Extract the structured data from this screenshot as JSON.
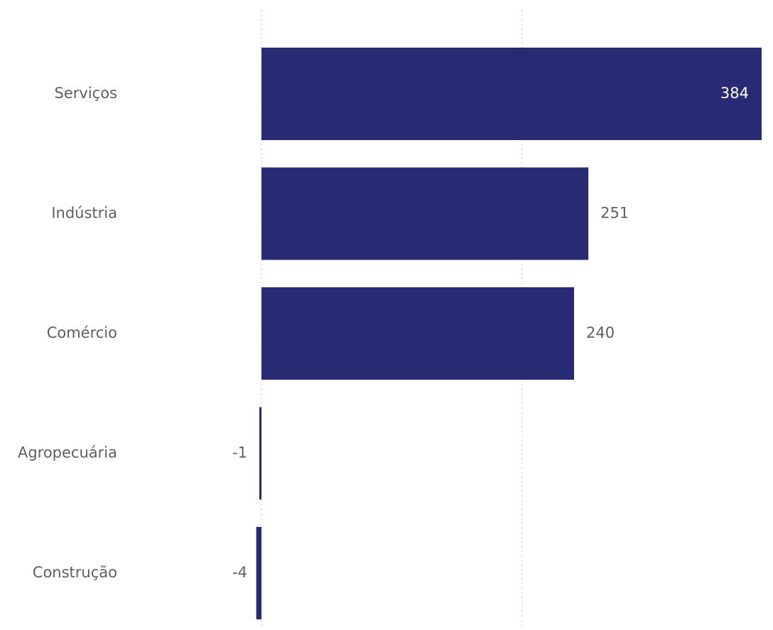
{
  "chart_data": {
    "type": "bar",
    "orientation": "horizontal",
    "categories": [
      "Serviços",
      "Indústria",
      "Comércio",
      "Agropecuária",
      "Construção"
    ],
    "values": [
      384,
      251,
      240,
      -1,
      -4
    ],
    "data_labels": [
      "384",
      "251",
      "240",
      "-1",
      "-4"
    ],
    "title": "",
    "xlabel": "",
    "ylabel": "",
    "xlim": [
      -4,
      384
    ],
    "gridlines_at": [
      0,
      200
    ],
    "grid": true,
    "legend": "none",
    "bar_color": "#282A73",
    "label_color": "#5F5F5F",
    "inside_label_color": "#FFFFFF"
  }
}
